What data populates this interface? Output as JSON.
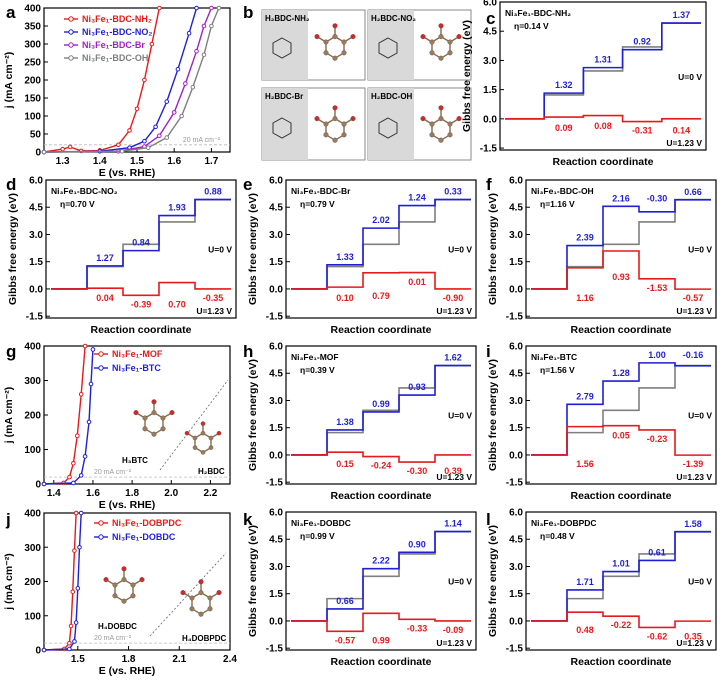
{
  "colors": {
    "red": "#e41a1c",
    "blue": "#1f1fd6",
    "purple": "#a020c8",
    "gray": "#7f7f7f",
    "dark": "#222"
  },
  "panel_letters": {
    "a": "a",
    "b": "b",
    "c": "c",
    "d": "d",
    "e": "e",
    "f": "f",
    "g": "g",
    "h": "h",
    "i": "i",
    "j": "j",
    "k": "k",
    "l": "l"
  },
  "lsv_text": {
    "ylabel": "j (mA cm⁻²)",
    "xlabel": "E (vs. RHE)",
    "ref_note": "20 mA cm⁻²"
  },
  "b_labels": [
    "H₂BDC-NH₂",
    "H₂BDC-NO₂",
    "H₂BDC-Br",
    "H₂BDC-OH"
  ],
  "g_labels": {
    "h3btc": "H₃BTC",
    "h2bdc": "H₂BDC"
  },
  "j_labels": {
    "h4dobdc": "H₄DOBDC",
    "h4dobpdc": "H₄DOBPDC"
  },
  "chart_data": [
    {
      "id": "a",
      "type": "line",
      "xlabel": "E (vs. RHE)",
      "ylabel": "j (mA cm⁻²)",
      "xlim": [
        1.25,
        1.75
      ],
      "ylim": [
        0,
        400
      ],
      "xticks": [
        "1.3",
        "1.4",
        "1.5",
        "1.6",
        "1.7"
      ],
      "yticks": [
        "0",
        "50",
        "100",
        "150",
        "200",
        "250",
        "300",
        "350",
        "400"
      ],
      "annotation": "20 mA cm⁻²",
      "series": [
        {
          "name": "Ni₃Fe₁-BDC-NH₂",
          "color": "red",
          "x": [
            1.25,
            1.3,
            1.32,
            1.35,
            1.4,
            1.45,
            1.48,
            1.5,
            1.52,
            1.54,
            1.56
          ],
          "y": [
            0,
            8,
            14,
            3,
            4,
            20,
            60,
            120,
            200,
            300,
            400
          ]
        },
        {
          "name": "Ni₃Fe₁-BDC-NO₂",
          "color": "blue",
          "x": [
            1.25,
            1.4,
            1.48,
            1.52,
            1.55,
            1.58,
            1.61,
            1.64,
            1.66
          ],
          "y": [
            0,
            2,
            12,
            30,
            70,
            140,
            230,
            330,
            400
          ]
        },
        {
          "name": "Ni₃Fe₁-BDC-Br",
          "color": "purple",
          "x": [
            1.25,
            1.45,
            1.52,
            1.56,
            1.6,
            1.63,
            1.66,
            1.68,
            1.7
          ],
          "y": [
            0,
            2,
            15,
            45,
            110,
            190,
            280,
            350,
            400
          ]
        },
        {
          "name": "Ni₃Fe₁-BDC-OH",
          "color": "gray",
          "x": [
            1.25,
            1.46,
            1.53,
            1.58,
            1.62,
            1.65,
            1.68,
            1.7,
            1.72
          ],
          "y": [
            0,
            2,
            12,
            40,
            100,
            180,
            270,
            350,
            400
          ]
        }
      ]
    },
    {
      "id": "c",
      "type": "step",
      "title": "Ni₃Fe₁-BDC-NH₂",
      "eta": "η=0.14 V",
      "ylabel": "Gibbs free energy (eV)",
      "xlabel": "Reaction coordinate",
      "yticks": [
        "-1.5",
        "0.0",
        "1.5",
        "3.0",
        "4.5",
        "6.0"
      ],
      "ylim": [
        -1.6,
        6.0
      ],
      "u0": "U=0 V",
      "u123": "U=1.23 V",
      "blue_steps": [
        1.32,
        1.31,
        0.92,
        1.37
      ],
      "red_steps": [
        0.09,
        0.08,
        -0.31,
        0.14
      ]
    },
    {
      "id": "d",
      "type": "step",
      "title": "Ni₃Fe₁-BDC-NO₂",
      "eta": "η=0.70 V",
      "ylabel": "Gibbs free energy (eV)",
      "xlabel": "Reaction coordinate",
      "yticks": [
        "-1.5",
        "0.0",
        "1.5",
        "3.0",
        "4.5",
        "6.0"
      ],
      "ylim": [
        -1.6,
        6.0
      ],
      "u0": "U=0 V",
      "u123": "U=1.23 V",
      "blue_steps": [
        1.27,
        0.84,
        1.93,
        0.88
      ],
      "red_steps": [
        0.04,
        -0.39,
        0.7,
        -0.35
      ]
    },
    {
      "id": "e",
      "type": "step",
      "title": "Ni₃Fe₁-BDC-Br",
      "eta": "η=0.79 V",
      "ylabel": "Gibbs free energy (eV)",
      "xlabel": "Reaction coordinate",
      "yticks": [
        "-1.5",
        "0.0",
        "1.5",
        "3.0",
        "4.5",
        "6.0"
      ],
      "ylim": [
        -1.6,
        6.0
      ],
      "u0": "U=0 V",
      "u123": "U=1.23 V",
      "blue_steps": [
        1.33,
        2.02,
        1.24,
        0.33
      ],
      "red_steps": [
        0.1,
        0.79,
        0.01,
        -0.9
      ]
    },
    {
      "id": "f",
      "type": "step",
      "title": "Ni₃Fe₁-BDC-OH",
      "eta": "η=1.16 V",
      "ylabel": "Gibbs free energy (eV)",
      "xlabel": "Reaction coordinate",
      "yticks": [
        "-1.5",
        "0.0",
        "1.5",
        "3.0",
        "4.5",
        "6.0"
      ],
      "ylim": [
        -1.6,
        6.0
      ],
      "u0": "U=0 V",
      "u123": "U=1.23 V",
      "blue_steps": [
        2.39,
        2.16,
        -0.3,
        0.66
      ],
      "red_steps": [
        1.16,
        0.93,
        -1.53,
        -0.57
      ]
    },
    {
      "id": "g",
      "type": "line",
      "xlabel": "E (vs. RHE)",
      "ylabel": "j (mA cm⁻²)",
      "xlim": [
        1.35,
        2.3
      ],
      "ylim": [
        0,
        400
      ],
      "xticks": [
        "1.4",
        "1.6",
        "1.8",
        "2.0",
        "2.2"
      ],
      "yticks": [
        "0",
        "100",
        "200",
        "300",
        "400"
      ],
      "annotation": "20 mA cm⁻²",
      "series": [
        {
          "name": "Ni₃Fe₁-MOF",
          "color": "red",
          "x": [
            1.35,
            1.45,
            1.48,
            1.5,
            1.52,
            1.54,
            1.56
          ],
          "y": [
            0,
            3,
            20,
            60,
            140,
            260,
            400
          ]
        },
        {
          "name": "Ni₃Fe₁-BTC",
          "color": "blue",
          "x": [
            1.35,
            1.5,
            1.54,
            1.56,
            1.58,
            1.59,
            1.6
          ],
          "y": [
            0,
            3,
            25,
            80,
            180,
            290,
            390
          ]
        }
      ]
    },
    {
      "id": "h",
      "type": "step",
      "title": "Ni₃Fe₁-MOF",
      "eta": "η=0.39 V",
      "ylabel": "Gibbs free energy (eV)",
      "xlabel": "Reaction coordinate",
      "yticks": [
        "-1.5",
        "0.0",
        "1.5",
        "3.0",
        "4.5",
        "6.0"
      ],
      "ylim": [
        -1.6,
        6.0
      ],
      "u0": "U=0 V",
      "u123": "U=1.23 V",
      "blue_steps": [
        1.38,
        0.99,
        0.93,
        1.62
      ],
      "red_steps": [
        0.15,
        -0.24,
        -0.3,
        0.39
      ]
    },
    {
      "id": "i",
      "type": "step",
      "title": "Ni₃Fe₁-BTC",
      "eta": "η=1.56 V",
      "ylabel": "Gibbs free energy (eV)",
      "xlabel": "Reaction coordinate",
      "yticks": [
        "-1.5",
        "0.0",
        "1.5",
        "3.0",
        "4.5",
        "6.0"
      ],
      "ylim": [
        -1.6,
        6.0
      ],
      "u0": "U=0 V",
      "u123": "U=1.23 V",
      "blue_steps": [
        2.79,
        1.28,
        1.0,
        -0.16
      ],
      "red_steps": [
        1.56,
        0.05,
        -0.23,
        -1.39
      ]
    },
    {
      "id": "j",
      "type": "line",
      "xlabel": "E (vs. RHE)",
      "ylabel": "j (mA cm⁻²)",
      "xlim": [
        1.3,
        2.4
      ],
      "ylim": [
        0,
        400
      ],
      "xticks": [
        "1.5",
        "1.8",
        "2.1",
        "2.4"
      ],
      "yticks": [
        "0",
        "100",
        "200",
        "300",
        "400"
      ],
      "annotation": "20 mA cm⁻²",
      "series": [
        {
          "name": "Ni₃Fe₁-DOBPDC",
          "color": "red",
          "x": [
            1.3,
            1.42,
            1.45,
            1.46,
            1.47,
            1.48,
            1.49
          ],
          "y": [
            0,
            3,
            20,
            70,
            170,
            290,
            400
          ]
        },
        {
          "name": "Ni₃Fe₁-DOBDC",
          "color": "blue",
          "x": [
            1.3,
            1.45,
            1.48,
            1.49,
            1.5,
            1.51,
            1.52
          ],
          "y": [
            0,
            3,
            25,
            80,
            180,
            300,
            400
          ]
        }
      ]
    },
    {
      "id": "k",
      "type": "step",
      "title": "Ni₃Fe₁-DOBDC",
      "eta": "η=0.99 V",
      "ylabel": "Gibbs free energy (eV)",
      "xlabel": "Reaction coordinate",
      "yticks": [
        "-1.5",
        "0.0",
        "1.5",
        "3.0",
        "4.5",
        "6.0"
      ],
      "ylim": [
        -1.6,
        6.0
      ],
      "u0": "U=0 V",
      "u123": "U=1.23 V",
      "blue_steps": [
        0.66,
        2.22,
        0.9,
        1.14
      ],
      "red_steps": [
        -0.57,
        0.99,
        -0.33,
        -0.09
      ]
    },
    {
      "id": "l",
      "type": "step",
      "title": "Ni₃Fe₁-DOBPDC",
      "eta": "η=0.48 V",
      "ylabel": "Gibbs free energy (eV)",
      "xlabel": "Reaction coordinate",
      "yticks": [
        "-1.5",
        "0.0",
        "1.5",
        "3.0",
        "4.5",
        "6.0"
      ],
      "ylim": [
        -1.6,
        6.0
      ],
      "u0": "U=0 V",
      "u123": "U=1.23 V",
      "blue_steps": [
        1.71,
        1.01,
        0.61,
        1.58
      ],
      "red_steps": [
        0.48,
        -0.22,
        -0.62,
        0.35
      ]
    }
  ]
}
